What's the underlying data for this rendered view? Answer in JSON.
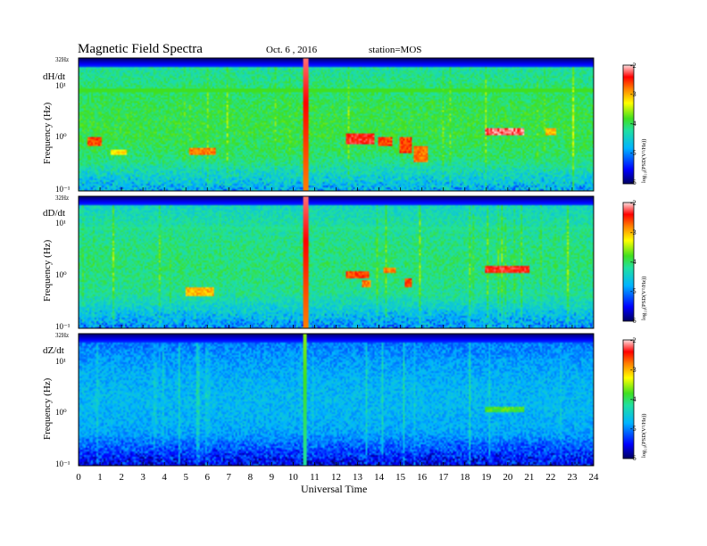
{
  "header": {
    "title": "Magnetic  Field  Spectra",
    "date": "Oct. 6  , 2016",
    "station": "station=MOS"
  },
  "chart_data": [
    {
      "type": "heatmap",
      "panel_label": "dH/dt",
      "ylabel": "Frequency  (Hz)",
      "top_label": "32Hz",
      "y_ticks": [
        "10¹",
        "10⁰",
        "10⁻¹"
      ],
      "x_range": [
        0,
        24
      ],
      "y_range": [
        0.1,
        32
      ],
      "y_scale": "log",
      "colorbar": {
        "label": "log₁₀(PSD(V²/Hz))",
        "ticks": [
          "-2",
          "-3",
          "-4",
          "-5",
          "-6"
        ],
        "range": [
          -6,
          -2
        ]
      },
      "features": [
        {
          "kind": "band",
          "t0": 0,
          "t1": 24,
          "f": 8,
          "level": 0.55
        },
        {
          "kind": "band",
          "t0": 0,
          "t1": 24,
          "f": 14,
          "level": 0.4
        },
        {
          "kind": "spike",
          "t0": 10.5,
          "t1": 10.7,
          "level": 0.95
        },
        {
          "kind": "blob",
          "t0": 0.4,
          "t1": 1.0,
          "f0": 0.7,
          "f1": 1.0,
          "level": 0.9
        },
        {
          "kind": "blob",
          "t0": 1.5,
          "t1": 2.2,
          "f0": 0.45,
          "f1": 0.6,
          "level": 0.75
        },
        {
          "kind": "blob",
          "t0": 5.1,
          "t1": 6.4,
          "f0": 0.45,
          "f1": 0.65,
          "level": 0.85
        },
        {
          "kind": "blob",
          "t0": 12.5,
          "t1": 13.8,
          "f0": 0.75,
          "f1": 1.2,
          "level": 0.95
        },
        {
          "kind": "blob",
          "t0": 14.0,
          "t1": 14.6,
          "f0": 0.7,
          "f1": 1.0,
          "level": 0.9
        },
        {
          "kind": "blob",
          "t0": 15.0,
          "t1": 15.5,
          "f0": 0.5,
          "f1": 1.0,
          "level": 0.9
        },
        {
          "kind": "blob",
          "t0": 15.6,
          "t1": 16.3,
          "f0": 0.35,
          "f1": 0.7,
          "level": 0.85
        },
        {
          "kind": "blob",
          "t0": 19.0,
          "t1": 20.8,
          "f0": 1.1,
          "f1": 1.5,
          "level": 1.0
        },
        {
          "kind": "blob",
          "t0": 21.8,
          "t1": 22.3,
          "f0": 1.1,
          "f1": 1.5,
          "level": 0.8
        }
      ]
    },
    {
      "type": "heatmap",
      "panel_label": "dD/dt",
      "ylabel": "Frequency  (Hz)",
      "top_label": "32Hz",
      "y_ticks": [
        "10¹",
        "10⁰",
        "10⁻¹"
      ],
      "x_range": [
        0,
        24
      ],
      "y_range": [
        0.1,
        32
      ],
      "y_scale": "log",
      "colorbar": {
        "label": "log₁₀(PSD(V²/Hz))",
        "ticks": [
          "-2",
          "-3",
          "-4",
          "-5",
          "-6"
        ],
        "range": [
          -6,
          -2
        ]
      },
      "features": [
        {
          "kind": "band",
          "t0": 0,
          "t1": 24,
          "f": 8,
          "level": 0.45
        },
        {
          "kind": "spike",
          "t0": 10.5,
          "t1": 10.7,
          "level": 0.95
        },
        {
          "kind": "blob",
          "t0": 5.0,
          "t1": 6.3,
          "f0": 0.4,
          "f1": 0.6,
          "level": 0.8
        },
        {
          "kind": "blob",
          "t0": 12.5,
          "t1": 13.5,
          "f0": 0.9,
          "f1": 1.2,
          "level": 0.9
        },
        {
          "kind": "blob",
          "t0": 13.2,
          "t1": 13.6,
          "f0": 0.6,
          "f1": 0.8,
          "level": 0.85
        },
        {
          "kind": "blob",
          "t0": 14.2,
          "t1": 14.8,
          "f0": 1.1,
          "f1": 1.4,
          "level": 0.85
        },
        {
          "kind": "blob",
          "t0": 15.2,
          "t1": 15.5,
          "f0": 0.6,
          "f1": 0.9,
          "level": 0.9
        },
        {
          "kind": "blob",
          "t0": 19.0,
          "t1": 21.0,
          "f0": 1.1,
          "f1": 1.5,
          "level": 0.95
        }
      ]
    },
    {
      "type": "heatmap",
      "panel_label": "dZ/dt",
      "ylabel": "Frequency  (Hz)",
      "top_label": "32Hz",
      "y_ticks": [
        "10¹",
        "10⁰",
        "10⁻¹"
      ],
      "x_range": [
        0,
        24
      ],
      "y_range": [
        0.1,
        32
      ],
      "y_scale": "log",
      "colorbar": {
        "label": "log₁₀(PSD(V²/Hz))",
        "ticks": [
          "-2",
          "-3",
          "-4",
          "-5",
          "-6"
        ],
        "range": [
          -6,
          -2
        ]
      },
      "features": [
        {
          "kind": "spike",
          "t0": 10.5,
          "t1": 10.65,
          "level": 0.6
        },
        {
          "kind": "blob",
          "t0": 19.0,
          "t1": 20.8,
          "f0": 1.0,
          "f1": 1.3,
          "level": 0.6
        }
      ]
    }
  ],
  "x_axis": {
    "label": "Universal Time",
    "ticks": [
      "0",
      "1",
      "2",
      "3",
      "4",
      "5",
      "6",
      "7",
      "8",
      "9",
      "10",
      "11",
      "12",
      "13",
      "14",
      "15",
      "16",
      "17",
      "18",
      "19",
      "20",
      "21",
      "22",
      "23",
      "24"
    ]
  }
}
